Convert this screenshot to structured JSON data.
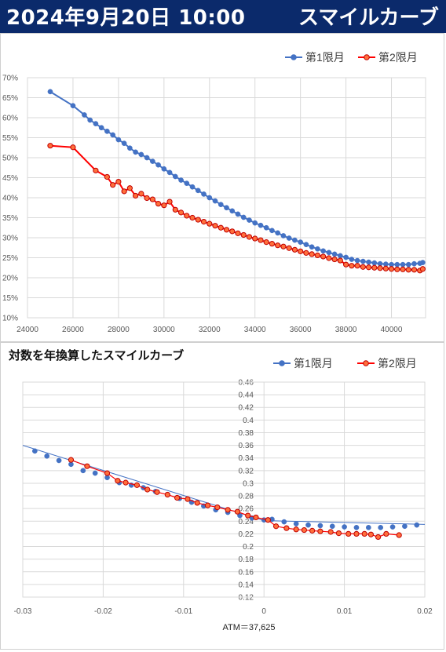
{
  "header": {
    "date": "2024年9月20日 10:00",
    "title": "スマイルカーブ"
  },
  "colors": {
    "header_bg": "#0b2a6b",
    "series1": "#4472c4",
    "series2": "#ff0000",
    "series2_fill": "#ff6f3c",
    "grid": "#d9d9d9"
  },
  "chart_data": [
    {
      "type": "line",
      "title": "",
      "legend_position": "top-right",
      "grid": true,
      "xlim": [
        24000,
        41500
      ],
      "ylim": [
        0.1,
        0.7
      ],
      "x_ticks": [
        "24000",
        "26000",
        "28000",
        "30000",
        "32000",
        "34000",
        "36000",
        "38000",
        "40000"
      ],
      "y_ticks": [
        "10%",
        "15%",
        "20%",
        "25%",
        "30%",
        "35%",
        "40%",
        "45%",
        "50%",
        "55%",
        "60%",
        "65%",
        "70%"
      ],
      "series": [
        {
          "name": "第1限月",
          "x": [
            25000,
            26000,
            26500,
            26750,
            27000,
            27250,
            27500,
            27750,
            28000,
            28250,
            28500,
            28750,
            29000,
            29250,
            29500,
            29750,
            30000,
            30250,
            30500,
            30750,
            31000,
            31250,
            31500,
            31750,
            32000,
            32250,
            32500,
            32750,
            33000,
            33250,
            33500,
            33750,
            34000,
            34250,
            34500,
            34750,
            35000,
            35250,
            35500,
            35750,
            36000,
            36250,
            36500,
            36750,
            37000,
            37250,
            37500,
            37750,
            38000,
            38250,
            38500,
            38750,
            39000,
            39250,
            39500,
            39750,
            40000,
            40250,
            40500,
            40750,
            41000,
            41250,
            41375
          ],
          "y": [
            0.665,
            0.63,
            0.607,
            0.594,
            0.585,
            0.575,
            0.566,
            0.557,
            0.545,
            0.536,
            0.524,
            0.514,
            0.508,
            0.5,
            0.491,
            0.482,
            0.472,
            0.463,
            0.453,
            0.444,
            0.436,
            0.427,
            0.418,
            0.409,
            0.4,
            0.392,
            0.383,
            0.375,
            0.367,
            0.359,
            0.351,
            0.344,
            0.337,
            0.331,
            0.325,
            0.318,
            0.312,
            0.305,
            0.299,
            0.294,
            0.289,
            0.283,
            0.277,
            0.272,
            0.267,
            0.263,
            0.259,
            0.255,
            0.251,
            0.246,
            0.243,
            0.241,
            0.239,
            0.237,
            0.235,
            0.234,
            0.233,
            0.233,
            0.233,
            0.233,
            0.235,
            0.236,
            0.238
          ]
        },
        {
          "name": "第2限月",
          "x": [
            25000,
            26000,
            27000,
            27500,
            27750,
            28000,
            28250,
            28500,
            28750,
            29000,
            29250,
            29500,
            29750,
            30000,
            30250,
            30500,
            30750,
            31000,
            31250,
            31500,
            31750,
            32000,
            32250,
            32500,
            32750,
            33000,
            33250,
            33500,
            33750,
            34000,
            34250,
            34500,
            34750,
            35000,
            35250,
            35500,
            35750,
            36000,
            36250,
            36500,
            36750,
            37000,
            37250,
            37500,
            37750,
            38000,
            38250,
            38500,
            38750,
            39000,
            39250,
            39500,
            39750,
            40000,
            40250,
            40500,
            40750,
            41000,
            41250,
            41375
          ],
          "y": [
            0.53,
            0.526,
            0.468,
            0.452,
            0.432,
            0.44,
            0.416,
            0.424,
            0.405,
            0.41,
            0.399,
            0.396,
            0.385,
            0.381,
            0.39,
            0.37,
            0.363,
            0.355,
            0.35,
            0.345,
            0.34,
            0.335,
            0.33,
            0.325,
            0.32,
            0.316,
            0.311,
            0.307,
            0.302,
            0.298,
            0.294,
            0.289,
            0.285,
            0.281,
            0.278,
            0.274,
            0.27,
            0.266,
            0.262,
            0.259,
            0.256,
            0.253,
            0.249,
            0.246,
            0.243,
            0.233,
            0.23,
            0.23,
            0.227,
            0.226,
            0.225,
            0.224,
            0.223,
            0.222,
            0.221,
            0.221,
            0.22,
            0.22,
            0.218,
            0.222
          ]
        }
      ]
    },
    {
      "type": "scatter",
      "title": "対数を年換算したスマイルカーブ",
      "legend_position": "top-right",
      "grid": true,
      "xlim": [
        -0.03,
        0.02
      ],
      "ylim": [
        0.12,
        0.46
      ],
      "x_ticks": [
        "-0.03",
        "-0.02",
        "-0.01",
        "0",
        "0.01",
        "0.02"
      ],
      "y_ticks": [
        "0.12",
        "0.14",
        "0.16",
        "0.18",
        "0.2",
        "0.22",
        "0.24",
        "0.26",
        "0.28",
        "0.3",
        "0.32",
        "0.34",
        "0.36",
        "0.38",
        "0.4",
        "0.42",
        "0.44",
        "0.46"
      ],
      "annotation": "ATM＝37,625",
      "series": [
        {
          "name": "第1限月",
          "trend_line": [
            [
              -0.03,
              0.36
            ],
            [
              0.0,
              0.241
            ],
            [
              0.02,
              0.235
            ]
          ],
          "x": [
            -0.0285,
            -0.027,
            -0.0255,
            -0.024,
            -0.0225,
            -0.021,
            -0.0195,
            -0.018,
            -0.0165,
            -0.015,
            -0.0135,
            -0.012,
            -0.0105,
            -0.009,
            -0.0075,
            -0.006,
            -0.0045,
            -0.003,
            -0.0015,
            0.0,
            0.001,
            0.0025,
            0.004,
            0.0055,
            0.007,
            0.0085,
            0.01,
            0.0115,
            0.013,
            0.0145,
            0.016,
            0.0175,
            0.019
          ],
          "y": [
            0.351,
            0.343,
            0.336,
            0.33,
            0.32,
            0.316,
            0.309,
            0.301,
            0.297,
            0.293,
            0.287,
            0.282,
            0.276,
            0.27,
            0.264,
            0.258,
            0.254,
            0.249,
            0.245,
            0.242,
            0.243,
            0.239,
            0.236,
            0.234,
            0.233,
            0.232,
            0.231,
            0.23,
            0.23,
            0.23,
            0.231,
            0.232,
            0.234
          ]
        },
        {
          "name": "第2限月",
          "x": [
            -0.024,
            -0.022,
            -0.0195,
            -0.0182,
            -0.0172,
            -0.0158,
            -0.0145,
            -0.0133,
            -0.012,
            -0.0108,
            -0.0095,
            -0.0083,
            -0.007,
            -0.0058,
            -0.0045,
            -0.0033,
            -0.002,
            -0.001,
            0.0005,
            0.0015,
            0.0028,
            0.004,
            0.005,
            0.006,
            0.007,
            0.0083,
            0.0093,
            0.0105,
            0.0115,
            0.0125,
            0.0133,
            0.0142,
            0.0152,
            0.0168
          ],
          "y": [
            0.337,
            0.327,
            0.316,
            0.304,
            0.301,
            0.297,
            0.29,
            0.286,
            0.282,
            0.277,
            0.275,
            0.269,
            0.265,
            0.262,
            0.258,
            0.255,
            0.249,
            0.246,
            0.242,
            0.232,
            0.229,
            0.227,
            0.226,
            0.225,
            0.224,
            0.223,
            0.221,
            0.22,
            0.22,
            0.22,
            0.219,
            0.215,
            0.22,
            0.218
          ]
        }
      ]
    }
  ]
}
